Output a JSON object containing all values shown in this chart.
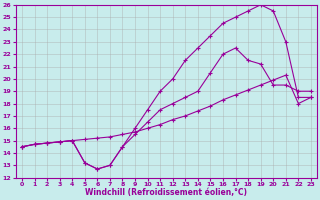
{
  "xlabel": "Windchill (Refroidissement éolien,°C)",
  "background_color": "#c8ecec",
  "grid_color": "#aaaaaa",
  "line_color": "#990099",
  "xlim": [
    -0.5,
    23.5
  ],
  "ylim": [
    12,
    26
  ],
  "xticks": [
    0,
    1,
    2,
    3,
    4,
    5,
    6,
    7,
    8,
    9,
    10,
    11,
    12,
    13,
    14,
    15,
    16,
    17,
    18,
    19,
    20,
    21,
    22,
    23
  ],
  "yticks": [
    12,
    13,
    14,
    15,
    16,
    17,
    18,
    19,
    20,
    21,
    22,
    23,
    24,
    25,
    26
  ],
  "line1_x": [
    0,
    1,
    2,
    3,
    4,
    5,
    6,
    7,
    8,
    9,
    10,
    11,
    12,
    13,
    14,
    15,
    16,
    17,
    18,
    19,
    20,
    21,
    22,
    23
  ],
  "line1_y": [
    14.5,
    14.7,
    14.8,
    14.9,
    15.0,
    15.1,
    15.2,
    15.3,
    15.5,
    15.7,
    16.0,
    16.3,
    16.7,
    17.0,
    17.4,
    17.8,
    18.3,
    18.7,
    19.1,
    19.5,
    19.9,
    20.3,
    18.0,
    18.5
  ],
  "line2_x": [
    0,
    1,
    2,
    3,
    4,
    5,
    6,
    7,
    8,
    9,
    10,
    11,
    12,
    13,
    14,
    15,
    16,
    17,
    18,
    19,
    20,
    21,
    22,
    23
  ],
  "line2_y": [
    14.5,
    14.7,
    14.8,
    14.9,
    15.0,
    13.2,
    12.7,
    13.0,
    14.5,
    15.5,
    16.5,
    17.5,
    18.0,
    18.5,
    19.0,
    20.5,
    22.0,
    22.5,
    21.5,
    21.2,
    19.5,
    19.5,
    19.0,
    19.0
  ],
  "line3_x": [
    0,
    1,
    2,
    3,
    4,
    5,
    6,
    7,
    8,
    9,
    10,
    11,
    12,
    13,
    14,
    15,
    16,
    17,
    18,
    19,
    20,
    21,
    22,
    23
  ],
  "line3_y": [
    14.5,
    14.7,
    14.8,
    14.9,
    15.0,
    13.2,
    12.7,
    13.0,
    14.5,
    16.0,
    17.5,
    19.0,
    20.0,
    21.5,
    22.5,
    23.5,
    24.5,
    25.0,
    25.5,
    26.0,
    25.5,
    23.0,
    18.5,
    18.5
  ],
  "marker": "+",
  "markersize": 3,
  "linewidth": 0.8,
  "tick_fontsize": 4.5,
  "label_fontsize": 5.5
}
